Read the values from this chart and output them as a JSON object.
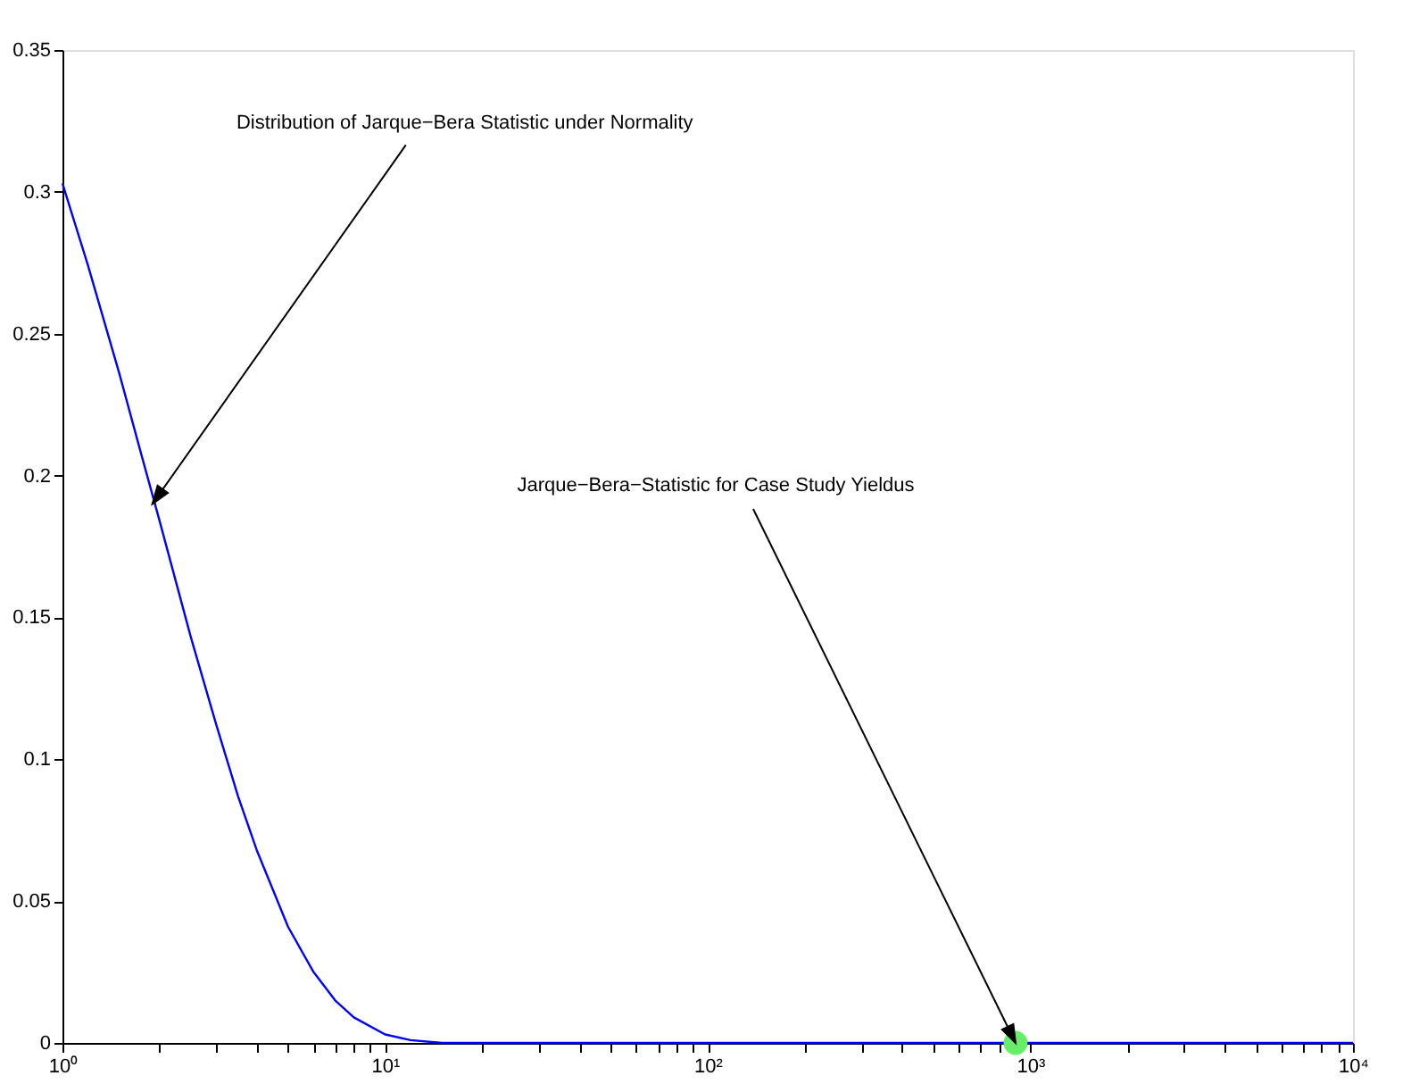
{
  "chart_data": {
    "type": "line",
    "log": "x",
    "grid": false,
    "xlim": [
      1,
      10000
    ],
    "ylim": [
      0,
      0.35
    ],
    "xticks": [
      {
        "value": 1,
        "label": "10⁰"
      },
      {
        "value": 2,
        "label": null
      },
      {
        "value": 3,
        "label": null
      },
      {
        "value": 4,
        "label": null
      },
      {
        "value": 5,
        "label": null
      },
      {
        "value": 6,
        "label": null
      },
      {
        "value": 7,
        "label": null
      },
      {
        "value": 8,
        "label": null
      },
      {
        "value": 9,
        "label": null
      },
      {
        "value": 10,
        "label": "10¹"
      },
      {
        "value": 20,
        "label": null
      },
      {
        "value": 30,
        "label": null
      },
      {
        "value": 40,
        "label": null
      },
      {
        "value": 50,
        "label": null
      },
      {
        "value": 60,
        "label": null
      },
      {
        "value": 70,
        "label": null
      },
      {
        "value": 80,
        "label": null
      },
      {
        "value": 90,
        "label": null
      },
      {
        "value": 100,
        "label": "10²"
      },
      {
        "value": 200,
        "label": null
      },
      {
        "value": 300,
        "label": null
      },
      {
        "value": 400,
        "label": null
      },
      {
        "value": 500,
        "label": null
      },
      {
        "value": 600,
        "label": null
      },
      {
        "value": 700,
        "label": null
      },
      {
        "value": 800,
        "label": null
      },
      {
        "value": 900,
        "label": null
      },
      {
        "value": 1000,
        "label": "10³"
      },
      {
        "value": 2000,
        "label": null
      },
      {
        "value": 3000,
        "label": null
      },
      {
        "value": 4000,
        "label": null
      },
      {
        "value": 5000,
        "label": null
      },
      {
        "value": 6000,
        "label": null
      },
      {
        "value": 7000,
        "label": null
      },
      {
        "value": 8000,
        "label": null
      },
      {
        "value": 9000,
        "label": null
      },
      {
        "value": 10000,
        "label": "10⁴"
      }
    ],
    "yticks": [
      0,
      0.05,
      0.1,
      0.15,
      0.2,
      0.25,
      0.3,
      0.35
    ],
    "series": [
      {
        "color": "#0000ff",
        "marker": "none",
        "x": [
          1,
          1.2,
          1.5,
          1.75,
          2,
          2.5,
          3,
          3.5,
          4,
          5,
          6,
          7,
          8,
          10,
          12,
          15,
          20,
          50,
          100,
          1000,
          10000
        ],
        "values": [
          0.303,
          0.274,
          0.236,
          0.208,
          0.184,
          0.143,
          0.112,
          0.087,
          0.068,
          0.041,
          0.025,
          0.015,
          0.009,
          0.003,
          0.001,
          0,
          0,
          0,
          0,
          0,
          0
        ]
      },
      {
        "type": "scatter",
        "color": "#66ee66",
        "marker": "circle",
        "x": [
          900
        ],
        "values": [
          0
        ]
      }
    ],
    "annotations": [
      {
        "text": "Distribution of Jarque−Bera Statistic under Normality",
        "x": 1.9,
        "y": 0.19
      },
      {
        "text": "Jarque−Bera−Statistic for Case Study Yieldus",
        "x": 900,
        "y": 0
      }
    ]
  }
}
